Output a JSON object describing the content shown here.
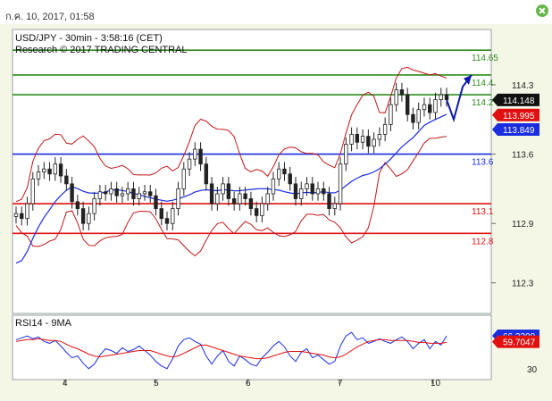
{
  "header": {
    "date_label": "ก.ค. 10, 2017, 01:58"
  },
  "chart_data": [
    {
      "type": "candlestick",
      "title": "USD/JPY - 30min - 3:58:16 (CET)",
      "subtitle": "Research © 2017 TRADING CENTRAL",
      "ylim": [
        112.0,
        114.85
      ],
      "y_ticks": [
        "114.3",
        "113.6",
        "112.9",
        "112.3"
      ],
      "x_ticks": [
        "4",
        "5",
        "6",
        "7",
        "10"
      ],
      "levels": [
        {
          "value": 114.65,
          "label": "114.65",
          "color": "#2e8b1e"
        },
        {
          "value": 114.4,
          "label": "114.4",
          "color": "#2e8b1e"
        },
        {
          "value": 114.2,
          "label": "114.2",
          "color": "#2e8b1e"
        },
        {
          "value": 113.6,
          "label": "113.6",
          "color": "#1a2ee0"
        },
        {
          "value": 113.1,
          "label": "113.1",
          "color": "#e01010"
        },
        {
          "value": 112.8,
          "label": "112.8",
          "color": "#e01010"
        }
      ],
      "price_badges": [
        {
          "value": 114.148,
          "label": "114.148",
          "color": "#111111"
        },
        {
          "value": 113.995,
          "label": "113.995",
          "color": "#e01010"
        },
        {
          "value": 113.849,
          "label": "113.849",
          "color": "#1a2ee0"
        }
      ],
      "close_path": [
        113.0,
        112.95,
        113.1,
        113.35,
        113.42,
        113.45,
        113.4,
        113.5,
        113.38,
        113.3,
        113.12,
        113.05,
        112.9,
        113.0,
        113.15,
        113.22,
        113.2,
        113.25,
        113.18,
        113.2,
        113.25,
        113.15,
        113.2,
        113.22,
        113.18,
        113.05,
        112.95,
        112.9,
        113.05,
        113.25,
        113.45,
        113.55,
        113.65,
        113.5,
        113.3,
        113.1,
        113.2,
        113.3,
        113.15,
        113.1,
        113.2,
        113.15,
        113.05,
        112.98,
        113.1,
        113.2,
        113.35,
        113.45,
        113.4,
        113.3,
        113.15,
        113.25,
        113.3,
        113.2,
        113.25,
        113.2,
        113.05,
        113.1,
        113.5,
        113.7,
        113.8,
        113.72,
        113.78,
        113.68,
        113.75,
        113.8,
        113.9,
        114.1,
        114.25,
        114.2,
        114.0,
        113.92,
        114.05,
        114.1,
        114.02,
        114.15,
        114.2,
        114.15
      ],
      "forecast": [
        114.15,
        113.95,
        114.28,
        114.4
      ]
    },
    {
      "type": "line",
      "title": "RSI14 - 9MA",
      "ylim": [
        20,
        80
      ],
      "y_ticks": [
        "30"
      ],
      "series": [
        {
          "name": "RSI14",
          "color": "#1a2ee0",
          "values": [
            62,
            64,
            66,
            63,
            65,
            60,
            58,
            61,
            55,
            48,
            42,
            44,
            36,
            30,
            35,
            45,
            52,
            50,
            47,
            53,
            49,
            51,
            55,
            50,
            45,
            38,
            33,
            30,
            41,
            55,
            62,
            64,
            60,
            57,
            44,
            35,
            44,
            50,
            38,
            33,
            44,
            40,
            35,
            33,
            42,
            48,
            55,
            60,
            54,
            44,
            38,
            48,
            52,
            42,
            45,
            40,
            35,
            38,
            55,
            66,
            70,
            62,
            64,
            58,
            60,
            63,
            60,
            58,
            62,
            65,
            60,
            52,
            58,
            62,
            52,
            60,
            56,
            66
          ]
        },
        {
          "name": "9MA",
          "color": "#e01010",
          "values": [
            60,
            61,
            62,
            62,
            63,
            62,
            61,
            61,
            60,
            57,
            54,
            52,
            49,
            46,
            44,
            43,
            44,
            45,
            46,
            47,
            48,
            49,
            50,
            50,
            50,
            48,
            46,
            44,
            43,
            44,
            47,
            50,
            53,
            56,
            56,
            54,
            52,
            50,
            48,
            46,
            44,
            43,
            42,
            41,
            41,
            42,
            44,
            46,
            48,
            49,
            49,
            49,
            48,
            47,
            46,
            45,
            43,
            42,
            43,
            46,
            50,
            54,
            57,
            60,
            61,
            62,
            62,
            61,
            61,
            61,
            61,
            60,
            59,
            59,
            58,
            58,
            58,
            59
          ]
        }
      ],
      "value_badges": [
        {
          "value": 66.2209,
          "label": "66.2209",
          "color": "#1a2ee0"
        },
        {
          "value": 59.7047,
          "label": "59.7047",
          "color": "#e01010"
        }
      ]
    }
  ]
}
